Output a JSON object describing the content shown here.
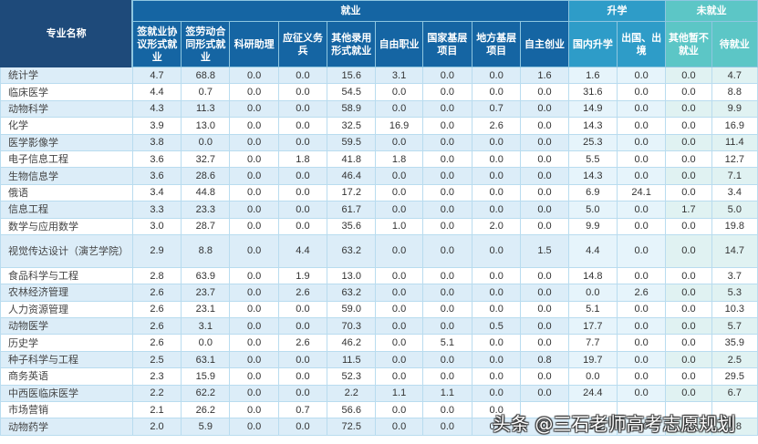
{
  "header": {
    "name_col": "专业名称",
    "groups": [
      {
        "label": "就业",
        "span": 9
      },
      {
        "label": "升学",
        "span": 2
      },
      {
        "label": "未就业",
        "span": 2
      }
    ],
    "columns": [
      "签就业协议形式就业",
      "签劳动合同形式就业",
      "科研助理",
      "应征义务兵",
      "其他录用形式就业",
      "自由职业",
      "国家基层项目",
      "地方基层项目",
      "自主创业",
      "国内升学",
      "出国、出境",
      "其他暂不就业",
      "待就业"
    ]
  },
  "rows": [
    {
      "name": "统计学",
      "v": [
        "4.7",
        "68.8",
        "0.0",
        "0.0",
        "15.6",
        "3.1",
        "0.0",
        "0.0",
        "1.6",
        "1.6",
        "0.0",
        "0.0",
        "4.7"
      ]
    },
    {
      "name": "临床医学",
      "v": [
        "4.4",
        "0.7",
        "0.0",
        "0.0",
        "54.5",
        "0.0",
        "0.0",
        "0.0",
        "0.0",
        "31.6",
        "0.0",
        "0.0",
        "8.8"
      ]
    },
    {
      "name": "动物科学",
      "v": [
        "4.3",
        "11.3",
        "0.0",
        "0.0",
        "58.9",
        "0.0",
        "0.0",
        "0.7",
        "0.0",
        "14.9",
        "0.0",
        "0.0",
        "9.9"
      ]
    },
    {
      "name": "化学",
      "v": [
        "3.9",
        "13.0",
        "0.0",
        "0.0",
        "32.5",
        "16.9",
        "0.0",
        "2.6",
        "0.0",
        "14.3",
        "0.0",
        "0.0",
        "16.9"
      ]
    },
    {
      "name": "医学影像学",
      "v": [
        "3.8",
        "0.0",
        "0.0",
        "0.0",
        "59.5",
        "0.0",
        "0.0",
        "0.0",
        "0.0",
        "25.3",
        "0.0",
        "0.0",
        "11.4"
      ]
    },
    {
      "name": "电子信息工程",
      "v": [
        "3.6",
        "32.7",
        "0.0",
        "1.8",
        "41.8",
        "1.8",
        "0.0",
        "0.0",
        "0.0",
        "5.5",
        "0.0",
        "0.0",
        "12.7"
      ]
    },
    {
      "name": "生物信息学",
      "v": [
        "3.6",
        "28.6",
        "0.0",
        "0.0",
        "46.4",
        "0.0",
        "0.0",
        "0.0",
        "0.0",
        "14.3",
        "0.0",
        "0.0",
        "7.1"
      ]
    },
    {
      "name": "俄语",
      "v": [
        "3.4",
        "44.8",
        "0.0",
        "0.0",
        "17.2",
        "0.0",
        "0.0",
        "0.0",
        "0.0",
        "6.9",
        "24.1",
        "0.0",
        "3.4"
      ]
    },
    {
      "name": "信息工程",
      "v": [
        "3.3",
        "23.3",
        "0.0",
        "0.0",
        "61.7",
        "0.0",
        "0.0",
        "0.0",
        "0.0",
        "5.0",
        "0.0",
        "1.7",
        "5.0"
      ]
    },
    {
      "name": "数学与应用数学",
      "v": [
        "3.0",
        "28.7",
        "0.0",
        "0.0",
        "35.6",
        "1.0",
        "0.0",
        "2.0",
        "0.0",
        "9.9",
        "0.0",
        "0.0",
        "19.8"
      ]
    },
    {
      "name": "视觉传达设计（演艺学院）",
      "v": [
        "2.9",
        "8.8",
        "0.0",
        "4.4",
        "63.2",
        "0.0",
        "0.0",
        "0.0",
        "1.5",
        "4.4",
        "0.0",
        "0.0",
        "14.7"
      ]
    },
    {
      "name": "食品科学与工程",
      "v": [
        "2.8",
        "63.9",
        "0.0",
        "1.9",
        "13.0",
        "0.0",
        "0.0",
        "0.0",
        "0.0",
        "14.8",
        "0.0",
        "0.0",
        "3.7"
      ]
    },
    {
      "name": "农林经济管理",
      "v": [
        "2.6",
        "23.7",
        "0.0",
        "2.6",
        "63.2",
        "0.0",
        "0.0",
        "0.0",
        "0.0",
        "0.0",
        "2.6",
        "0.0",
        "5.3"
      ]
    },
    {
      "name": "人力资源管理",
      "v": [
        "2.6",
        "23.1",
        "0.0",
        "0.0",
        "59.0",
        "0.0",
        "0.0",
        "0.0",
        "0.0",
        "5.1",
        "0.0",
        "0.0",
        "10.3"
      ]
    },
    {
      "name": "动物医学",
      "v": [
        "2.6",
        "3.1",
        "0.0",
        "0.0",
        "70.3",
        "0.0",
        "0.0",
        "0.5",
        "0.0",
        "17.7",
        "0.0",
        "0.0",
        "5.7"
      ]
    },
    {
      "name": "历史学",
      "v": [
        "2.6",
        "0.0",
        "0.0",
        "2.6",
        "46.2",
        "0.0",
        "5.1",
        "0.0",
        "0.0",
        "7.7",
        "0.0",
        "0.0",
        "35.9"
      ]
    },
    {
      "name": "种子科学与工程",
      "v": [
        "2.5",
        "63.1",
        "0.0",
        "0.0",
        "11.5",
        "0.0",
        "0.0",
        "0.0",
        "0.8",
        "19.7",
        "0.0",
        "0.0",
        "2.5"
      ]
    },
    {
      "name": "商务英语",
      "v": [
        "2.3",
        "15.9",
        "0.0",
        "0.0",
        "52.3",
        "0.0",
        "0.0",
        "0.0",
        "0.0",
        "0.0",
        "0.0",
        "0.0",
        "29.5"
      ]
    },
    {
      "name": "中西医临床医学",
      "v": [
        "2.2",
        "62.2",
        "0.0",
        "0.0",
        "2.2",
        "1.1",
        "1.1",
        "0.0",
        "0.0",
        "24.4",
        "0.0",
        "0.0",
        "6.7"
      ]
    },
    {
      "name": "市场营销",
      "v": [
        "2.1",
        "26.2",
        "0.0",
        "0.7",
        "56.6",
        "0.0",
        "0.0",
        "0.0",
        "",
        "",
        "",
        "",
        ""
      ]
    },
    {
      "name": "动物药学",
      "v": [
        "2.0",
        "5.9",
        "0.0",
        "0.0",
        "72.5",
        "0.0",
        "0.0",
        "0.0",
        "0.0",
        "11.8",
        "0.0",
        "0.0",
        "7.8"
      ]
    }
  ],
  "watermark": "头条 @三石老师高考志愿规划"
}
